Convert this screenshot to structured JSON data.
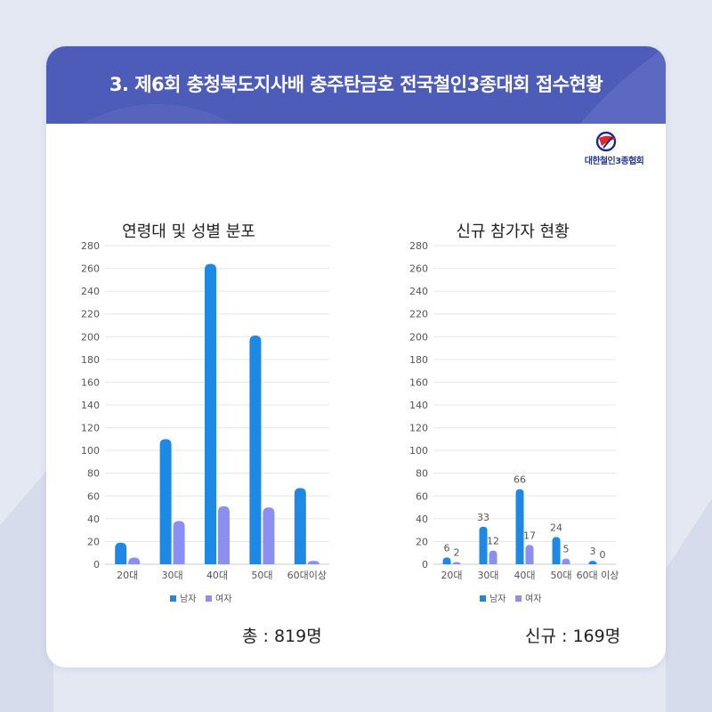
{
  "header": {
    "title": "3. 제6회 충청북도지사배 충주탄금호 전국철인3종대회 접수현황"
  },
  "logo": {
    "name": "대한철인3종협회",
    "icon": "triathlon-federation-logo"
  },
  "colors": {
    "male": "#1e88e5",
    "female": "#8c8ff2",
    "header": "#4d5cb8",
    "grid": "#e6e6e6"
  },
  "chart_data": [
    {
      "type": "bar",
      "title": "연령대 및 성별 분포",
      "categories": [
        "20대",
        "30대",
        "40대",
        "50대",
        "60대이상"
      ],
      "series": [
        {
          "name": "남자",
          "values": [
            19,
            110,
            264,
            201,
            67
          ]
        },
        {
          "name": "여자",
          "values": [
            6,
            38,
            51,
            50,
            3
          ]
        }
      ],
      "ylim": [
        0,
        280
      ],
      "yticks": [
        0,
        20,
        40,
        60,
        80,
        100,
        120,
        140,
        160,
        180,
        200,
        220,
        240,
        260,
        280
      ],
      "grid": true,
      "legend": "bottom",
      "data_labels": false,
      "total_label": "총 : 819명"
    },
    {
      "type": "bar",
      "title": "신규 참가자 현황",
      "categories": [
        "20대",
        "30대",
        "40대",
        "50대",
        "60대 이상"
      ],
      "series": [
        {
          "name": "남자",
          "values": [
            6,
            33,
            66,
            24,
            3
          ]
        },
        {
          "name": "여자",
          "values": [
            2,
            12,
            17,
            5,
            0
          ]
        }
      ],
      "ylim": [
        0,
        280
      ],
      "yticks": [
        0,
        20,
        40,
        60,
        80,
        100,
        120,
        140,
        160,
        180,
        200,
        220,
        240,
        260,
        280
      ],
      "grid": true,
      "legend": "bottom",
      "data_labels": true,
      "total_label": "신규 : 169명"
    }
  ]
}
